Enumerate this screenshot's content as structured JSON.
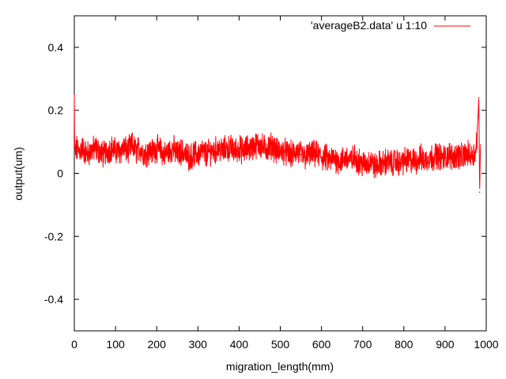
{
  "chart_data": {
    "type": "line",
    "xlabel": "migration_length(mm)",
    "ylabel": "output(um)",
    "xlim": [
      0,
      1000
    ],
    "ylim": [
      -0.5,
      0.5
    ],
    "x_ticks": [
      0,
      100,
      200,
      300,
      400,
      500,
      600,
      700,
      800,
      900,
      1000
    ],
    "y_ticks": [
      -0.4,
      -0.2,
      0,
      0.2,
      0.4
    ],
    "y_tick_labels": [
      "-0.4",
      "-0.2",
      "0",
      "0.2",
      "0.4"
    ],
    "grid": false,
    "legend_position": "top-right",
    "series": [
      {
        "name": "'averageB2.data' u 1:10",
        "color": "#ff0000",
        "x": [
          0,
          1,
          2,
          3,
          5,
          10,
          20,
          30,
          40,
          50,
          60,
          70,
          80,
          90,
          100,
          110,
          120,
          130,
          140,
          150,
          160,
          170,
          180,
          190,
          200,
          210,
          220,
          230,
          240,
          250,
          260,
          270,
          280,
          290,
          300,
          310,
          320,
          330,
          340,
          350,
          360,
          370,
          380,
          390,
          400,
          410,
          420,
          430,
          440,
          450,
          460,
          470,
          480,
          490,
          500,
          510,
          520,
          530,
          540,
          550,
          560,
          570,
          580,
          590,
          600,
          610,
          620,
          630,
          640,
          650,
          660,
          670,
          680,
          690,
          700,
          710,
          720,
          730,
          740,
          750,
          760,
          770,
          780,
          790,
          800,
          810,
          820,
          830,
          840,
          850,
          860,
          870,
          880,
          890,
          900,
          910,
          920,
          930,
          940,
          950,
          960,
          970,
          975,
          980,
          982,
          984,
          986
        ],
        "y": [
          0.25,
          0.07,
          0.09,
          0.06,
          0.08,
          0.07,
          0.08,
          0.06,
          0.07,
          0.08,
          0.07,
          0.06,
          0.07,
          0.08,
          0.07,
          0.07,
          0.08,
          0.07,
          0.09,
          0.07,
          0.08,
          0.06,
          0.07,
          0.07,
          0.08,
          0.07,
          0.06,
          0.07,
          0.08,
          0.06,
          0.07,
          0.06,
          0.05,
          0.06,
          0.06,
          0.07,
          0.06,
          0.07,
          0.07,
          0.08,
          0.07,
          0.08,
          0.08,
          0.07,
          0.08,
          0.07,
          0.08,
          0.08,
          0.09,
          0.09,
          0.08,
          0.08,
          0.09,
          0.07,
          0.07,
          0.07,
          0.06,
          0.06,
          0.07,
          0.06,
          0.05,
          0.06,
          0.06,
          0.06,
          0.05,
          0.05,
          0.04,
          0.05,
          0.04,
          0.04,
          0.05,
          0.04,
          0.05,
          0.04,
          0.03,
          0.03,
          0.04,
          0.02,
          0.03,
          0.03,
          0.04,
          0.03,
          0.04,
          0.03,
          0.04,
          0.04,
          0.04,
          0.04,
          0.05,
          0.04,
          0.05,
          0.05,
          0.06,
          0.05,
          0.05,
          0.06,
          0.05,
          0.06,
          0.05,
          0.06,
          0.06,
          0.06,
          0.07,
          0.18,
          0.24,
          -0.06,
          0.09
        ]
      }
    ]
  }
}
